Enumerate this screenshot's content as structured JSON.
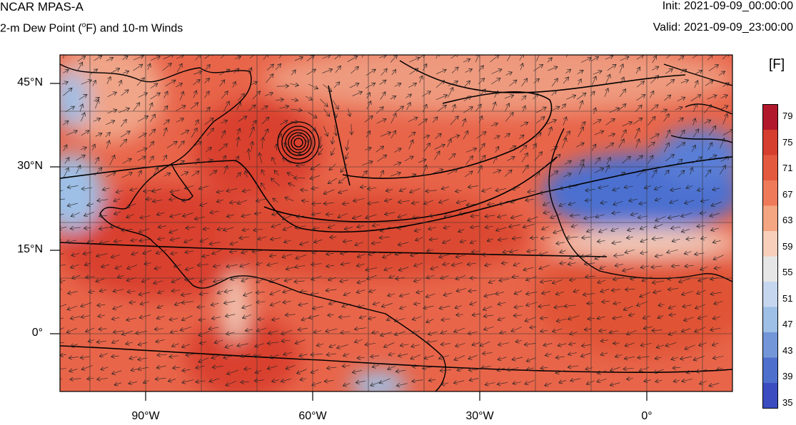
{
  "header": {
    "title": "NCAR MPAS-A",
    "subtitle_prefix": "2-m Dew Point (",
    "subtitle_deg": "o",
    "subtitle_suffix": "F) and 10-m Winds",
    "init": "Init: 2021-09-09_00:00:00",
    "valid": "Valid: 2021-09-09_23:00:00"
  },
  "colorbar": {
    "unit": "[F]",
    "labels": [
      "79",
      "75",
      "71",
      "67",
      "63",
      "59",
      "55",
      "51",
      "47",
      "43",
      "39",
      "35"
    ],
    "colors": [
      "#b2182b",
      "#d63e2e",
      "#e3593f",
      "#ef7a5a",
      "#f4a582",
      "#f8cfba",
      "#e6e6e6",
      "#c6d6ef",
      "#9ebfe6",
      "#7396d8",
      "#4f6fcc",
      "#3b4cc0"
    ]
  },
  "axes": {
    "lat_labels": [
      "45°N",
      "30°N",
      "15°N",
      "0°"
    ],
    "lon_labels": [
      "90°W",
      "60°W",
      "30°W",
      "0°"
    ]
  },
  "map_colors": {
    "land_warm": "#d9412f",
    "ocean_warm": "#e8654a",
    "cool_north": "#ee9a7e",
    "dry_blue": "#4b6fd0",
    "pale": "#f2c7b5"
  },
  "legend": {
    "title": "",
    "entries": []
  }
}
